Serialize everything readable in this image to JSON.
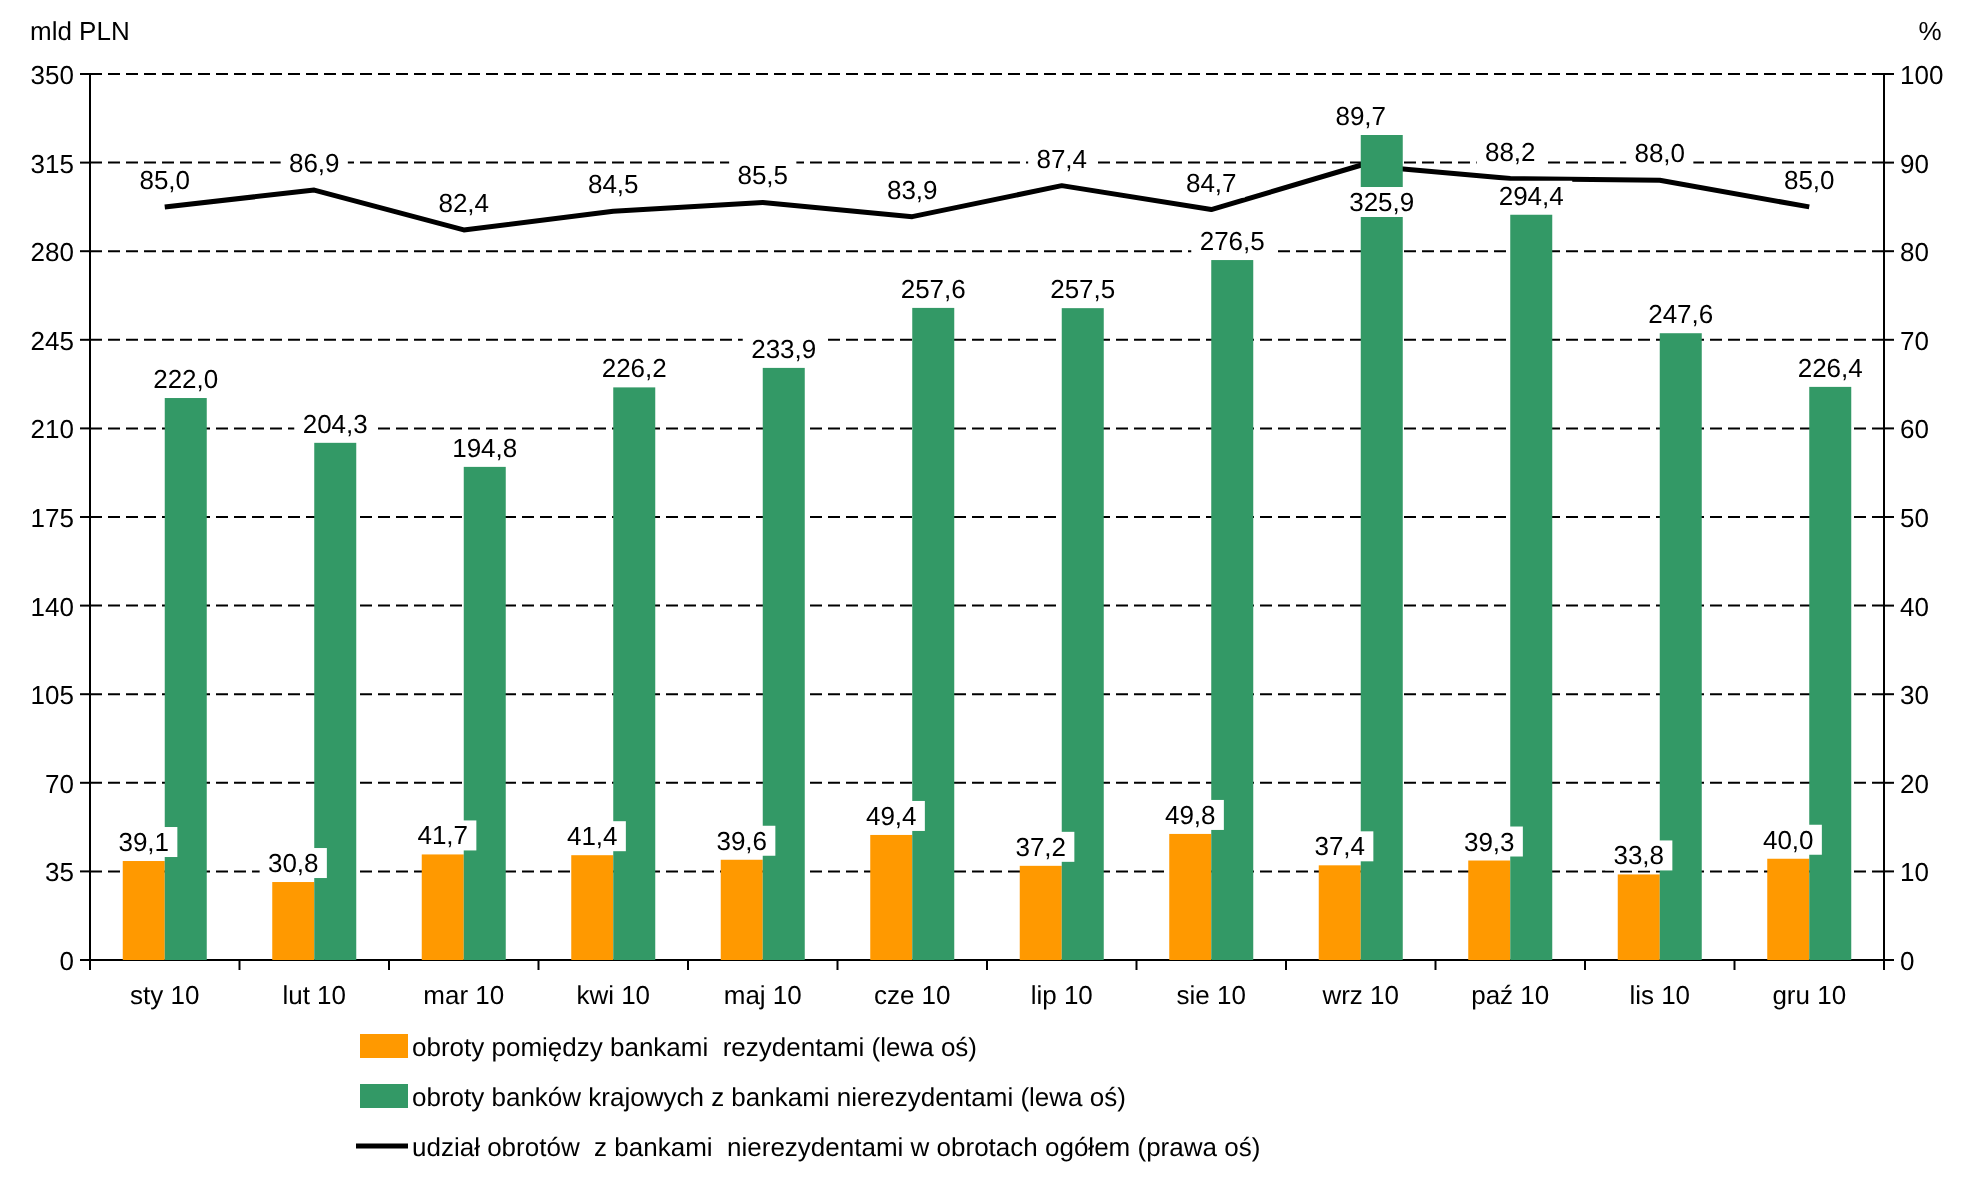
{
  "chart_data": {
    "type": "bar",
    "ylabel": "mld PLN",
    "y2label": "%",
    "categories": [
      "sty 10",
      "lut 10",
      "mar 10",
      "kwi 10",
      "maj 10",
      "cze 10",
      "lip 10",
      "sie 10",
      "wrz 10",
      "paź 10",
      "lis 10",
      "gru 10"
    ],
    "series": [
      {
        "name": "obroty pomiędzy bankami  rezydentami (lewa oś)",
        "color": "#ff9900",
        "values": [
          39.1,
          30.8,
          41.7,
          41.4,
          39.6,
          49.4,
          37.2,
          49.8,
          37.4,
          39.3,
          33.8,
          40.0
        ],
        "value_labels": [
          "39,1",
          "30,8",
          "41,7",
          "41,4",
          "39,6",
          "49,4",
          "37,2",
          "49,8",
          "37,4",
          "39,3",
          "33,8",
          "40,0"
        ]
      },
      {
        "name": "obroty banków krajowych z bankami nierezydentami (lewa oś)",
        "color": "#339966",
        "values": [
          222.0,
          204.3,
          194.8,
          226.2,
          233.9,
          257.6,
          257.5,
          276.5,
          325.9,
          294.4,
          247.6,
          226.4
        ],
        "value_labels": [
          "222,0",
          "204,3",
          "194,8",
          "226,2",
          "233,9",
          "257,6",
          "257,5",
          "276,5",
          "325,9",
          "294,4",
          "247,6",
          "226,4"
        ]
      },
      {
        "name": "udział obrotów  z bankami  nierezydentami w obrotach ogółem (prawa oś)",
        "type": "line",
        "axis": "y2",
        "color": "#000000",
        "values": [
          85.0,
          86.9,
          82.4,
          84.5,
          85.5,
          83.9,
          87.4,
          84.7,
          89.7,
          88.2,
          88.0,
          85.0
        ],
        "value_labels": [
          "85,0",
          "86,9",
          "82,4",
          "84,5",
          "85,5",
          "83,9",
          "87,4",
          "84,7",
          "89,7",
          "88,2",
          "88,0",
          "85,0"
        ]
      }
    ],
    "ylim": [
      0,
      350
    ],
    "yticks": [
      0,
      35,
      70,
      105,
      140,
      175,
      210,
      245,
      280,
      315,
      350
    ],
    "y2lim": [
      0,
      100
    ],
    "y2ticks": [
      0,
      10,
      20,
      30,
      40,
      50,
      60,
      70,
      80,
      90,
      100
    ],
    "grid": "y",
    "legend": "bottom",
    "marker": "none",
    "line_style": "solid"
  }
}
